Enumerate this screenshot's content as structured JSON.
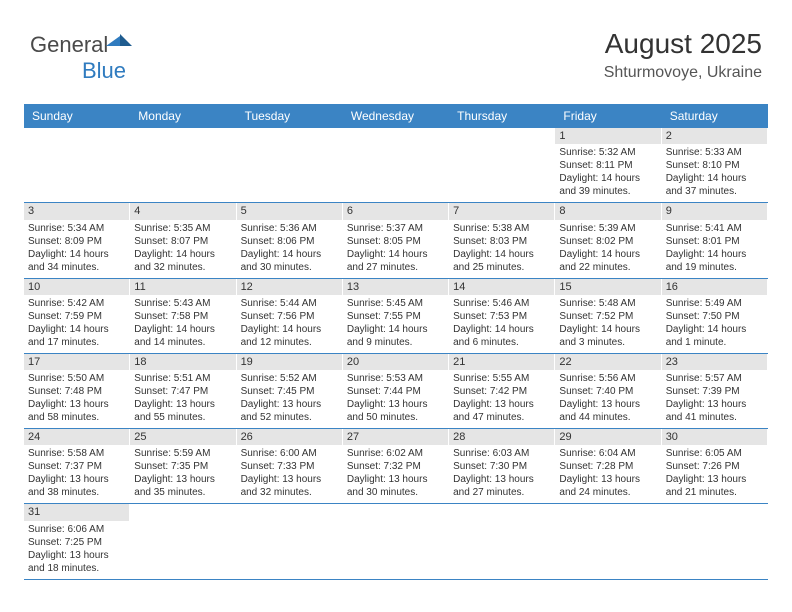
{
  "logo": {
    "general": "General",
    "blue": "Blue"
  },
  "header": {
    "month": "August 2025",
    "location": "Shturmovoye, Ukraine"
  },
  "colors": {
    "header_bg": "#3b84c4",
    "header_fg": "#ffffff",
    "daynum_bg": "#e5e5e5",
    "row_border": "#3b84c4",
    "text": "#333333"
  },
  "weekdays": [
    "Sunday",
    "Monday",
    "Tuesday",
    "Wednesday",
    "Thursday",
    "Friday",
    "Saturday"
  ],
  "grid": [
    [
      null,
      null,
      null,
      null,
      null,
      {
        "n": "1",
        "sunrise": "5:32 AM",
        "sunset": "8:11 PM",
        "dl_h": 14,
        "dl_m": 39
      },
      {
        "n": "2",
        "sunrise": "5:33 AM",
        "sunset": "8:10 PM",
        "dl_h": 14,
        "dl_m": 37
      }
    ],
    [
      {
        "n": "3",
        "sunrise": "5:34 AM",
        "sunset": "8:09 PM",
        "dl_h": 14,
        "dl_m": 34
      },
      {
        "n": "4",
        "sunrise": "5:35 AM",
        "sunset": "8:07 PM",
        "dl_h": 14,
        "dl_m": 32
      },
      {
        "n": "5",
        "sunrise": "5:36 AM",
        "sunset": "8:06 PM",
        "dl_h": 14,
        "dl_m": 30
      },
      {
        "n": "6",
        "sunrise": "5:37 AM",
        "sunset": "8:05 PM",
        "dl_h": 14,
        "dl_m": 27
      },
      {
        "n": "7",
        "sunrise": "5:38 AM",
        "sunset": "8:03 PM",
        "dl_h": 14,
        "dl_m": 25
      },
      {
        "n": "8",
        "sunrise": "5:39 AM",
        "sunset": "8:02 PM",
        "dl_h": 14,
        "dl_m": 22
      },
      {
        "n": "9",
        "sunrise": "5:41 AM",
        "sunset": "8:01 PM",
        "dl_h": 14,
        "dl_m": 19
      }
    ],
    [
      {
        "n": "10",
        "sunrise": "5:42 AM",
        "sunset": "7:59 PM",
        "dl_h": 14,
        "dl_m": 17
      },
      {
        "n": "11",
        "sunrise": "5:43 AM",
        "sunset": "7:58 PM",
        "dl_h": 14,
        "dl_m": 14
      },
      {
        "n": "12",
        "sunrise": "5:44 AM",
        "sunset": "7:56 PM",
        "dl_h": 14,
        "dl_m": 12
      },
      {
        "n": "13",
        "sunrise": "5:45 AM",
        "sunset": "7:55 PM",
        "dl_h": 14,
        "dl_m": 9
      },
      {
        "n": "14",
        "sunrise": "5:46 AM",
        "sunset": "7:53 PM",
        "dl_h": 14,
        "dl_m": 6
      },
      {
        "n": "15",
        "sunrise": "5:48 AM",
        "sunset": "7:52 PM",
        "dl_h": 14,
        "dl_m": 3
      },
      {
        "n": "16",
        "sunrise": "5:49 AM",
        "sunset": "7:50 PM",
        "dl_h": 14,
        "dl_m": 1
      }
    ],
    [
      {
        "n": "17",
        "sunrise": "5:50 AM",
        "sunset": "7:48 PM",
        "dl_h": 13,
        "dl_m": 58
      },
      {
        "n": "18",
        "sunrise": "5:51 AM",
        "sunset": "7:47 PM",
        "dl_h": 13,
        "dl_m": 55
      },
      {
        "n": "19",
        "sunrise": "5:52 AM",
        "sunset": "7:45 PM",
        "dl_h": 13,
        "dl_m": 52
      },
      {
        "n": "20",
        "sunrise": "5:53 AM",
        "sunset": "7:44 PM",
        "dl_h": 13,
        "dl_m": 50
      },
      {
        "n": "21",
        "sunrise": "5:55 AM",
        "sunset": "7:42 PM",
        "dl_h": 13,
        "dl_m": 47
      },
      {
        "n": "22",
        "sunrise": "5:56 AM",
        "sunset": "7:40 PM",
        "dl_h": 13,
        "dl_m": 44
      },
      {
        "n": "23",
        "sunrise": "5:57 AM",
        "sunset": "7:39 PM",
        "dl_h": 13,
        "dl_m": 41
      }
    ],
    [
      {
        "n": "24",
        "sunrise": "5:58 AM",
        "sunset": "7:37 PM",
        "dl_h": 13,
        "dl_m": 38
      },
      {
        "n": "25",
        "sunrise": "5:59 AM",
        "sunset": "7:35 PM",
        "dl_h": 13,
        "dl_m": 35
      },
      {
        "n": "26",
        "sunrise": "6:00 AM",
        "sunset": "7:33 PM",
        "dl_h": 13,
        "dl_m": 32
      },
      {
        "n": "27",
        "sunrise": "6:02 AM",
        "sunset": "7:32 PM",
        "dl_h": 13,
        "dl_m": 30
      },
      {
        "n": "28",
        "sunrise": "6:03 AM",
        "sunset": "7:30 PM",
        "dl_h": 13,
        "dl_m": 27
      },
      {
        "n": "29",
        "sunrise": "6:04 AM",
        "sunset": "7:28 PM",
        "dl_h": 13,
        "dl_m": 24
      },
      {
        "n": "30",
        "sunrise": "6:05 AM",
        "sunset": "7:26 PM",
        "dl_h": 13,
        "dl_m": 21
      }
    ],
    [
      {
        "n": "31",
        "sunrise": "6:06 AM",
        "sunset": "7:25 PM",
        "dl_h": 13,
        "dl_m": 18
      },
      null,
      null,
      null,
      null,
      null,
      null
    ]
  ],
  "labels": {
    "sunrise": "Sunrise:",
    "sunset": "Sunset:",
    "daylight_prefix": "Daylight:",
    "hours_word": "hours",
    "and_word": "and",
    "minute_word": "minute",
    "minutes_word": "minutes"
  }
}
